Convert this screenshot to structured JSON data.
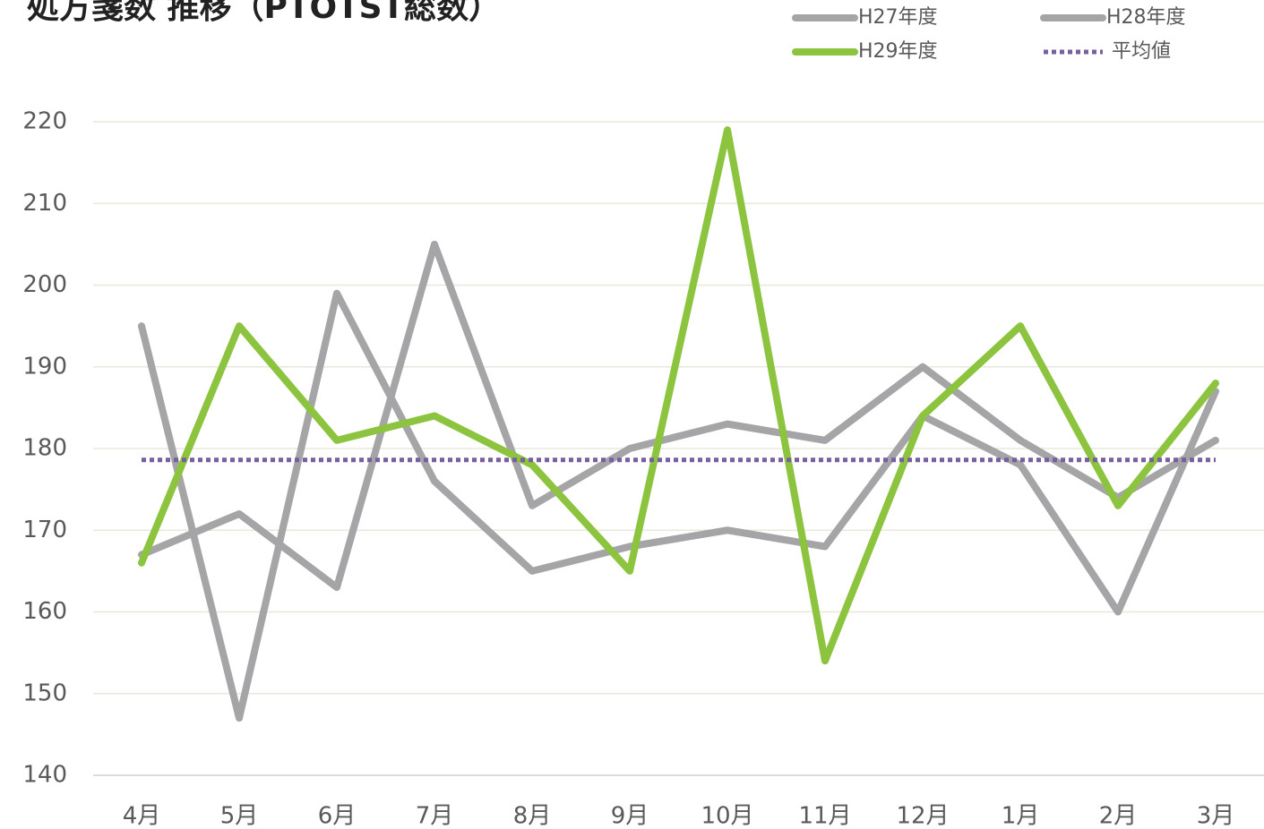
{
  "chart_data": {
    "type": "line",
    "title": "処方箋数 推移（PTOTST総数）",
    "categories": [
      "4月",
      "5月",
      "6月",
      "7月",
      "8月",
      "9月",
      "10月",
      "11月",
      "12月",
      "1月",
      "2月",
      "3月"
    ],
    "series": [
      {
        "name": "H27年度",
        "color": "#a5a5a8",
        "values": [
          195,
          147,
          199,
          176,
          165,
          168,
          170,
          168,
          184,
          178,
          160,
          187
        ]
      },
      {
        "name": "H28年度",
        "color": "#a5a5a8",
        "values": [
          167,
          172,
          163,
          205,
          173,
          180,
          183,
          181,
          190,
          181,
          174,
          181
        ]
      },
      {
        "name": "H29年度",
        "color": "#8cc43f",
        "values": [
          166,
          195,
          181,
          184,
          178,
          165,
          219,
          154,
          184,
          195,
          173,
          188
        ]
      },
      {
        "name": "平均値",
        "color": "#7a5fa0",
        "dotted": true,
        "values": [
          178.6,
          178.6,
          178.6,
          178.6,
          178.6,
          178.6,
          178.6,
          178.6,
          178.6,
          178.6,
          178.6,
          178.6
        ]
      }
    ],
    "ylim": [
      140,
      220
    ],
    "yticks": [
      140,
      150,
      160,
      170,
      180,
      190,
      200,
      210,
      220
    ],
    "grid": true,
    "legend": "top-right"
  }
}
